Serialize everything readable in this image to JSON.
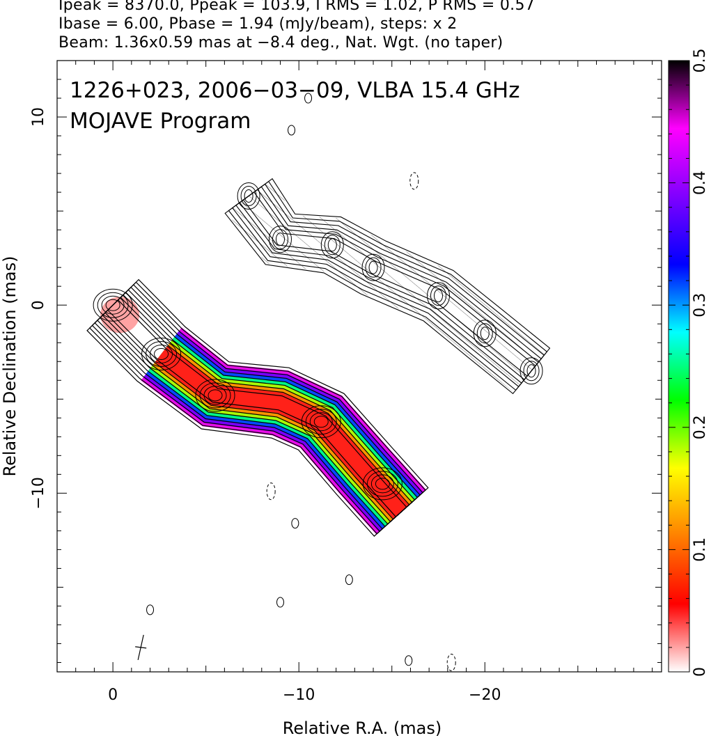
{
  "header": {
    "line1": "Ipeak = 8370.0, Ppeak = 103.9, I RMS = 1.02, P RMS = 0.57",
    "line2": "Ibase = 6.00, Pbase = 1.94 (mJy/beam), steps: x 2",
    "line3": "Beam: 1.36x0.59 mas at −8.4 deg., Nat. Wgt. (no taper)"
  },
  "chart_data": {
    "type": "heatmap",
    "title": "1226+023, 2006−03−09, VLBA 15.4 GHz",
    "subtitle": "MOJAVE Program",
    "xlabel": "Relative R.A. (mas)",
    "ylabel": "Relative Declination (mas)",
    "xlim": [
      3,
      -29.5
    ],
    "ylim": [
      -19.5,
      13
    ],
    "x_ticks": [
      0,
      -10,
      -20
    ],
    "x_tick_labels": [
      "0",
      "−10",
      "−20"
    ],
    "y_ticks": [
      10,
      0,
      -10
    ],
    "y_tick_labels": [
      "10",
      "0",
      "−10"
    ],
    "colorbar": {
      "range": [
        0,
        0.5
      ],
      "ticks": [
        0,
        0.1,
        0.2,
        0.3,
        0.4,
        0.5
      ],
      "tick_labels": [
        "0",
        "0.1",
        "0.2",
        "0.3",
        "0.4",
        "0.5"
      ],
      "colors": [
        "#ffffff",
        "#ff0000",
        "#ff8000",
        "#ffff00",
        "#00ff00",
        "#00ffff",
        "#0000ff",
        "#8000ff",
        "#ff00ff",
        "#000000"
      ]
    },
    "components": [
      {
        "x": 0.0,
        "y": 0.0
      },
      {
        "x": -2.6,
        "y": -2.6
      },
      {
        "x": -5.5,
        "y": -4.8
      },
      {
        "x": -11.2,
        "y": -6.2
      },
      {
        "x": -14.5,
        "y": -9.5
      }
    ],
    "left_jet_spine": [
      [
        0.0,
        0.0
      ],
      [
        -2.6,
        -2.6
      ],
      [
        -5.5,
        -4.8
      ],
      [
        -9.0,
        -5.2
      ],
      [
        -11.2,
        -6.2
      ],
      [
        -13.5,
        -8.8
      ],
      [
        -15.5,
        -11.0
      ]
    ],
    "right_jet_spine": [
      [
        -7.3,
        5.8
      ],
      [
        -9.0,
        3.5
      ],
      [
        -11.8,
        3.2
      ],
      [
        -14.0,
        2.0
      ],
      [
        -17.5,
        0.5
      ],
      [
        -20.0,
        -1.5
      ],
      [
        -22.5,
        -3.5
      ]
    ],
    "polarization_core_level": 0.05,
    "polarization_edge_level": 0.45
  }
}
